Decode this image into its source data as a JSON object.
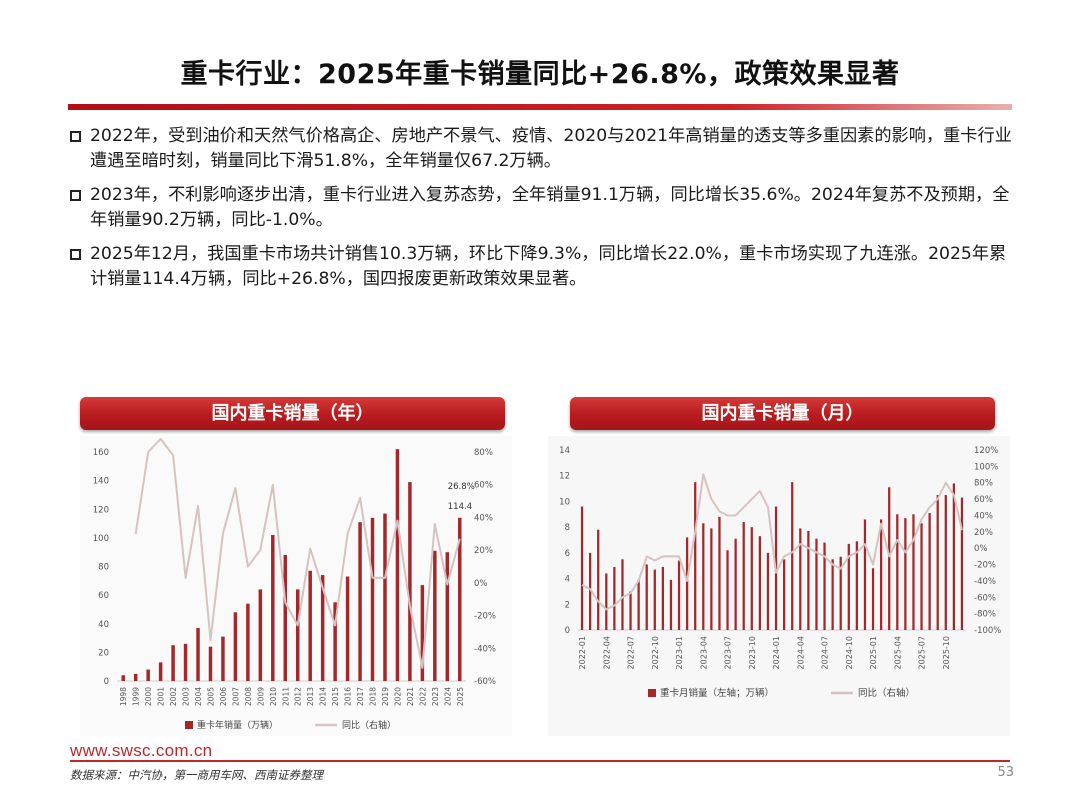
{
  "title": "重卡行业：2025年重卡销量同比+26.8%，政策效果显著",
  "bullets": [
    "2022年，受到油价和天然气价格高企、房地产不景气、疫情、2020与2021年高销量的透支等多重因素的影响，重卡行业遭遇至暗时刻，销量同比下滑51.8%，全年销量仅67.2万辆。",
    "2023年，不利影响逐步出清，重卡行业进入复苏态势，全年销量91.1万辆，同比增长35.6%。2024年复苏不及预期，全年销量90.2万辆，同比-1.0%。",
    "2025年12月，我国重卡市场共计销售10.3万辆，环比下降9.3%，同比增长22.0%，重卡市场实现了九连涨。2025年累计销量114.4万辆，同比+26.8%，国四报废更新政策效果显著。"
  ],
  "colors": {
    "brand_red": "#c0272d",
    "bar": "#a3282c",
    "line": "#d6c3c0"
  },
  "footer": {
    "url": "www.swsc.com.cn",
    "source": "数据来源：中汽协，第一商用车网、西南证券整理",
    "page": "53"
  },
  "chart_data": [
    {
      "type": "bar",
      "title": "国内重卡销量（年）",
      "categories": [
        "1998",
        "1999",
        "2000",
        "2001",
        "2002",
        "2003",
        "2004",
        "2005",
        "2006",
        "2007",
        "2008",
        "2009",
        "2010",
        "2011",
        "2012",
        "2013",
        "2014",
        "2015",
        "2016",
        "2017",
        "2018",
        "2019",
        "2020",
        "2021",
        "2022",
        "2023",
        "2024",
        "2025"
      ],
      "series": [
        {
          "name": "重卡年销量（万辆）",
          "axis": "left",
          "kind": "bar",
          "values": [
            4,
            5,
            8,
            13,
            25,
            26,
            37,
            24,
            31,
            48,
            54,
            64,
            102,
            88,
            64,
            77,
            74,
            55,
            73,
            111,
            114,
            117,
            162,
            139,
            67,
            91,
            90,
            114
          ]
        },
        {
          "name": "同比（右轴）",
          "axis": "right",
          "kind": "line",
          "values": [
            null,
            30,
            80,
            88,
            78,
            3,
            47,
            -35,
            30,
            58,
            10,
            20,
            60,
            -12,
            -26,
            21,
            -3,
            -26,
            30,
            52,
            3,
            3,
            38,
            -14,
            -52,
            36,
            -1,
            27
          ]
        }
      ],
      "ylim": [
        0,
        160
      ],
      "yticks": [
        0,
        20,
        40,
        60,
        80,
        100,
        120,
        140,
        160
      ],
      "y2lim": [
        -60,
        80
      ],
      "y2ticks": [
        "-60%",
        "-40%",
        "-20%",
        "0%",
        "20%",
        "40%",
        "60%",
        "80%"
      ],
      "annotations": [
        "26.8%",
        "114.4"
      ],
      "legend": [
        "重卡年销量（万辆）",
        "同比（右轴）"
      ],
      "legend_position": "bottom"
    },
    {
      "type": "bar",
      "title": "国内重卡销量（月）",
      "categories": [
        "2022-01",
        "2022-02",
        "2022-03",
        "2022-04",
        "2022-05",
        "2022-06",
        "2022-07",
        "2022-08",
        "2022-09",
        "2022-10",
        "2022-11",
        "2022-12",
        "2023-01",
        "2023-02",
        "2023-03",
        "2023-04",
        "2023-05",
        "2023-06",
        "2023-07",
        "2023-08",
        "2023-09",
        "2023-10",
        "2023-11",
        "2023-12",
        "2024-01",
        "2024-02",
        "2024-03",
        "2024-04",
        "2024-05",
        "2024-06",
        "2024-07",
        "2024-08",
        "2024-09",
        "2024-10",
        "2024-11",
        "2024-12",
        "2025-01",
        "2025-02",
        "2025-03",
        "2025-04",
        "2025-05",
        "2025-06",
        "2025-07",
        "2025-08",
        "2025-09",
        "2025-10",
        "2025-11",
        "2025-12"
      ],
      "tick_labels": [
        "2022-01",
        "2022-04",
        "2022-07",
        "2022-10",
        "2023-01",
        "2023-04",
        "2023-07",
        "2023-10",
        "2024-01",
        "2024-04",
        "2024-07",
        "2024-10",
        "2025-01",
        "2025-04",
        "2025-07",
        "2025-10"
      ],
      "series": [
        {
          "name": "重卡月销量（左轴；万辆）",
          "axis": "left",
          "kind": "bar",
          "values": [
            9.6,
            6.0,
            7.8,
            4.4,
            4.9,
            5.5,
            3.0,
            3.9,
            5.1,
            4.7,
            4.9,
            3.9,
            5.4,
            7.2,
            11.5,
            8.3,
            7.9,
            8.8,
            6.2,
            7.1,
            8.4,
            8.0,
            7.3,
            6.0,
            9.6,
            5.5,
            11.5,
            7.9,
            7.7,
            7.1,
            6.8,
            5.5,
            5.7,
            6.7,
            6.9,
            8.6,
            4.8,
            8.6,
            11.1,
            9.0,
            8.7,
            9.0,
            8.3,
            9.1,
            10.5,
            10.5,
            11.4,
            10.3
          ]
        },
        {
          "name": "同比（右轴）",
          "axis": "right",
          "kind": "line",
          "values": [
            -45,
            -50,
            -65,
            -75,
            -70,
            -60,
            -55,
            -40,
            -10,
            -15,
            -10,
            -10,
            -10,
            -40,
            20,
            90,
            60,
            45,
            40,
            40,
            50,
            60,
            70,
            50,
            -30,
            -10,
            -5,
            5,
            0,
            -5,
            -10,
            -20,
            -25,
            -10,
            -5,
            5,
            -20,
            30,
            -10,
            10,
            -5,
            10,
            35,
            50,
            60,
            80,
            65,
            22
          ]
        }
      ],
      "ylim": [
        0,
        14
      ],
      "yticks": [
        0,
        2,
        4,
        6,
        8,
        10,
        12,
        14
      ],
      "y2lim": [
        -100,
        120
      ],
      "y2ticks": [
        "-100%",
        "-80%",
        "-60%",
        "-40%",
        "-20%",
        "0%",
        "20%",
        "40%",
        "60%",
        "80%",
        "100%",
        "120%"
      ],
      "legend": [
        "重卡月销量（左轴；万辆）",
        "同比（右轴）"
      ],
      "legend_position": "bottom"
    }
  ]
}
